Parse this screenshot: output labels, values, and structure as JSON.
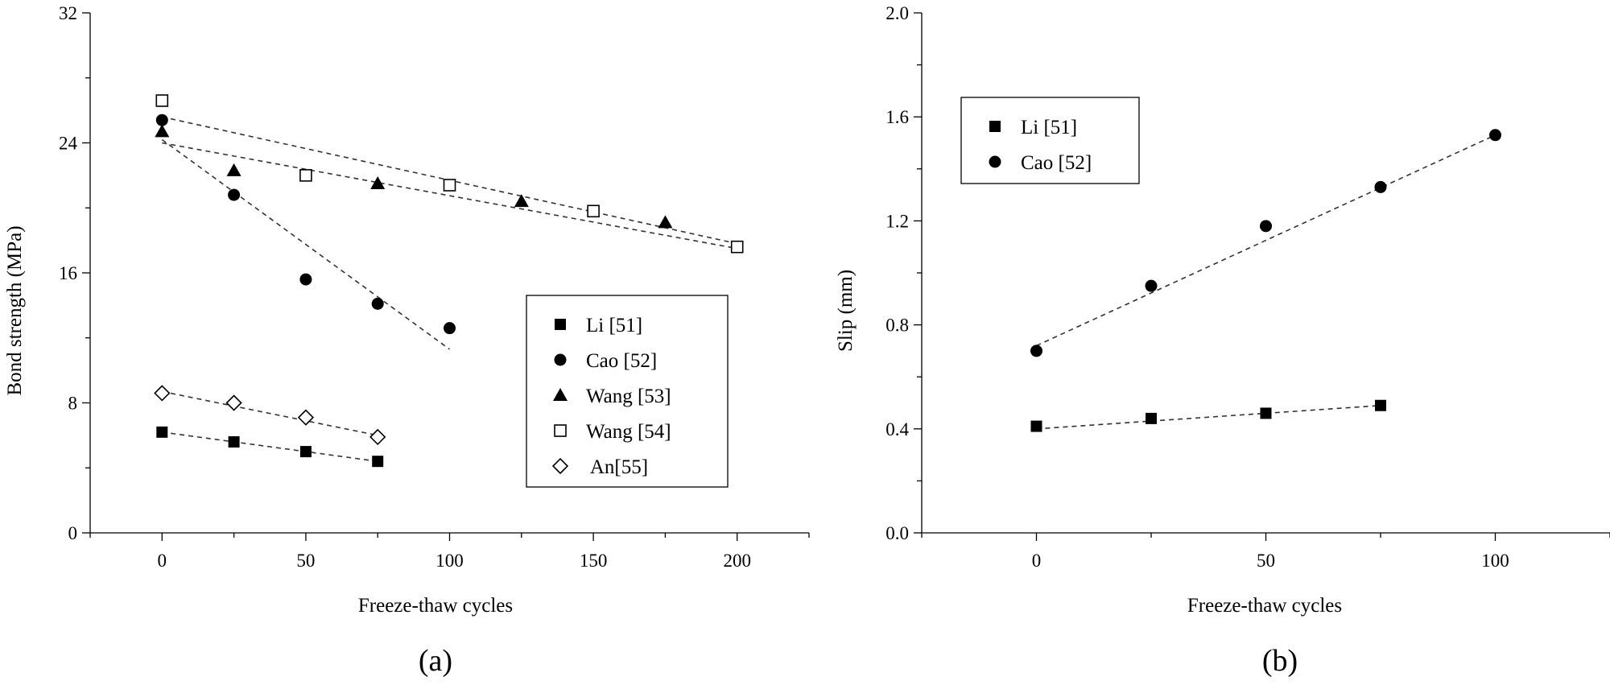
{
  "chart_data": [
    {
      "type": "scatter",
      "panel_label": "(a)",
      "xlabel": "Freeze-thaw cycles",
      "ylabel": "Bond strength (MPa)",
      "xlim": [
        -25,
        225
      ],
      "ylim": [
        0,
        32
      ],
      "xticks": [
        0,
        50,
        100,
        150,
        200
      ],
      "yticks": [
        0,
        8,
        16,
        24,
        32
      ],
      "legend_position": "right",
      "series": [
        {
          "name": "Li [51]",
          "marker": "square-filled",
          "x": [
            0,
            25,
            50,
            75
          ],
          "y": [
            6.2,
            5.6,
            5.0,
            4.4
          ],
          "trend": [
            [
              0,
              6.2
            ],
            [
              75,
              4.4
            ]
          ]
        },
        {
          "name": "Cao [52]",
          "marker": "circle-filled",
          "x": [
            0,
            25,
            50,
            75,
            100
          ],
          "y": [
            25.4,
            20.8,
            15.6,
            14.1,
            12.6
          ],
          "trend": [
            [
              0,
              24.2
            ],
            [
              100,
              11.3
            ]
          ]
        },
        {
          "name": "Wang [53]",
          "marker": "triangle-filled",
          "x": [
            0,
            25,
            75,
            125,
            175
          ],
          "y": [
            24.7,
            22.3,
            21.5,
            20.4,
            19.1
          ],
          "trend": [
            [
              0,
              24.0
            ],
            [
              200,
              17.5
            ]
          ]
        },
        {
          "name": "Wang [54]",
          "marker": "square-open",
          "x": [
            0,
            50,
            100,
            150,
            200
          ],
          "y": [
            26.6,
            22.0,
            21.4,
            19.8,
            17.6
          ],
          "trend": [
            [
              0,
              25.6
            ],
            [
              200,
              17.8
            ]
          ]
        },
        {
          "name": " An[55]",
          "marker": "diamond-open",
          "x": [
            0,
            25,
            50,
            75
          ],
          "y": [
            8.6,
            8.0,
            7.1,
            5.9
          ],
          "trend": [
            [
              0,
              8.7
            ],
            [
              75,
              6.0
            ]
          ]
        }
      ]
    },
    {
      "type": "scatter",
      "panel_label": "(b)",
      "xlabel": "Freeze-thaw cycles",
      "ylabel": "Slip (mm)",
      "xlim": [
        -25,
        125
      ],
      "ylim": [
        0.0,
        2.0
      ],
      "xticks": [
        0,
        50,
        100
      ],
      "yticks": [
        0.0,
        0.4,
        0.8,
        1.2,
        1.6,
        2.0
      ],
      "legend_position": "top-left",
      "series": [
        {
          "name": "Li [51]",
          "marker": "square-filled",
          "x": [
            0,
            25,
            50,
            75
          ],
          "y": [
            0.41,
            0.44,
            0.46,
            0.49
          ],
          "trend": [
            [
              0,
              0.4
            ],
            [
              75,
              0.49
            ]
          ]
        },
        {
          "name": "Cao [52]",
          "marker": "circle-filled",
          "x": [
            0,
            25,
            50,
            75,
            100
          ],
          "y": [
            0.7,
            0.95,
            1.18,
            1.33,
            1.53
          ],
          "trend": [
            [
              0,
              0.72
            ],
            [
              100,
              1.53
            ]
          ]
        }
      ]
    }
  ]
}
